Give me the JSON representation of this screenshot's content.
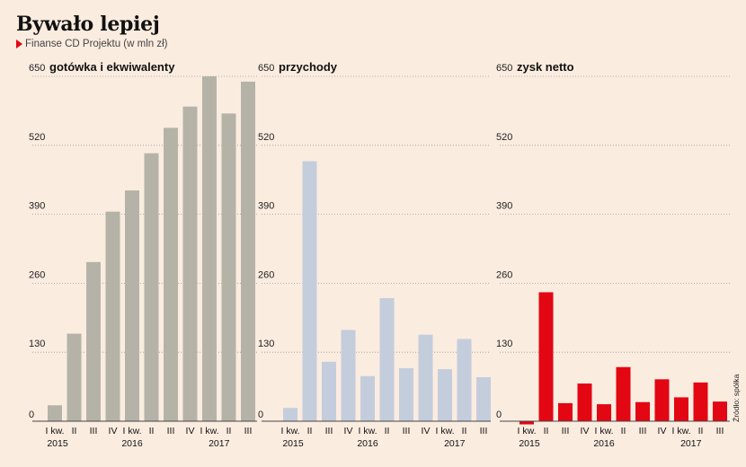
{
  "header": {
    "title": "Bywało lepiej",
    "subtitle": "Finanse CD Projektu (w mln zł)"
  },
  "source": "Źródło: spółka",
  "colors": {
    "background": "#fbece0",
    "accent": "#e30613"
  },
  "chart_data": [
    {
      "type": "bar",
      "title": "gotówka i ekwiwalenty",
      "color": "#b5b3a8",
      "ylim": [
        0,
        650
      ],
      "yticks": [
        0,
        130,
        260,
        390,
        520,
        650
      ],
      "categories": [
        "I kw.",
        "II",
        "III",
        "IV",
        "I kw.",
        "II",
        "III",
        "IV",
        "I kw.",
        "II",
        "III"
      ],
      "year_labels": [
        "2015",
        "2016",
        "2017"
      ],
      "values": [
        30,
        165,
        300,
        395,
        435,
        505,
        553,
        593,
        650,
        580,
        640
      ],
      "grid": true
    },
    {
      "type": "bar",
      "title": "przychody",
      "color": "#c4cddc",
      "ylim": [
        0,
        650
      ],
      "yticks": [
        0,
        130,
        260,
        390,
        520,
        650
      ],
      "categories": [
        "I kw.",
        "II",
        "III",
        "IV",
        "I kw.",
        "II",
        "III",
        "IV",
        "I kw.",
        "II",
        "III"
      ],
      "year_labels": [
        "2015",
        "2016",
        "2017"
      ],
      "values": [
        25,
        490,
        112,
        172,
        85,
        232,
        100,
        163,
        98,
        155,
        83
      ],
      "grid": true
    },
    {
      "type": "bar",
      "title": "zysk netto",
      "color": "#e30613",
      "ylim": [
        0,
        650
      ],
      "yticks": [
        0,
        130,
        260,
        390,
        520,
        650
      ],
      "categories": [
        "I kw.",
        "II",
        "III",
        "IV",
        "I kw.",
        "II",
        "III",
        "IV",
        "I kw.",
        "II",
        "III"
      ],
      "year_labels": [
        "2015",
        "2016",
        "2017"
      ],
      "values": [
        -6,
        243,
        34,
        71,
        32,
        102,
        36,
        79,
        45,
        73,
        37
      ],
      "grid": true
    }
  ]
}
